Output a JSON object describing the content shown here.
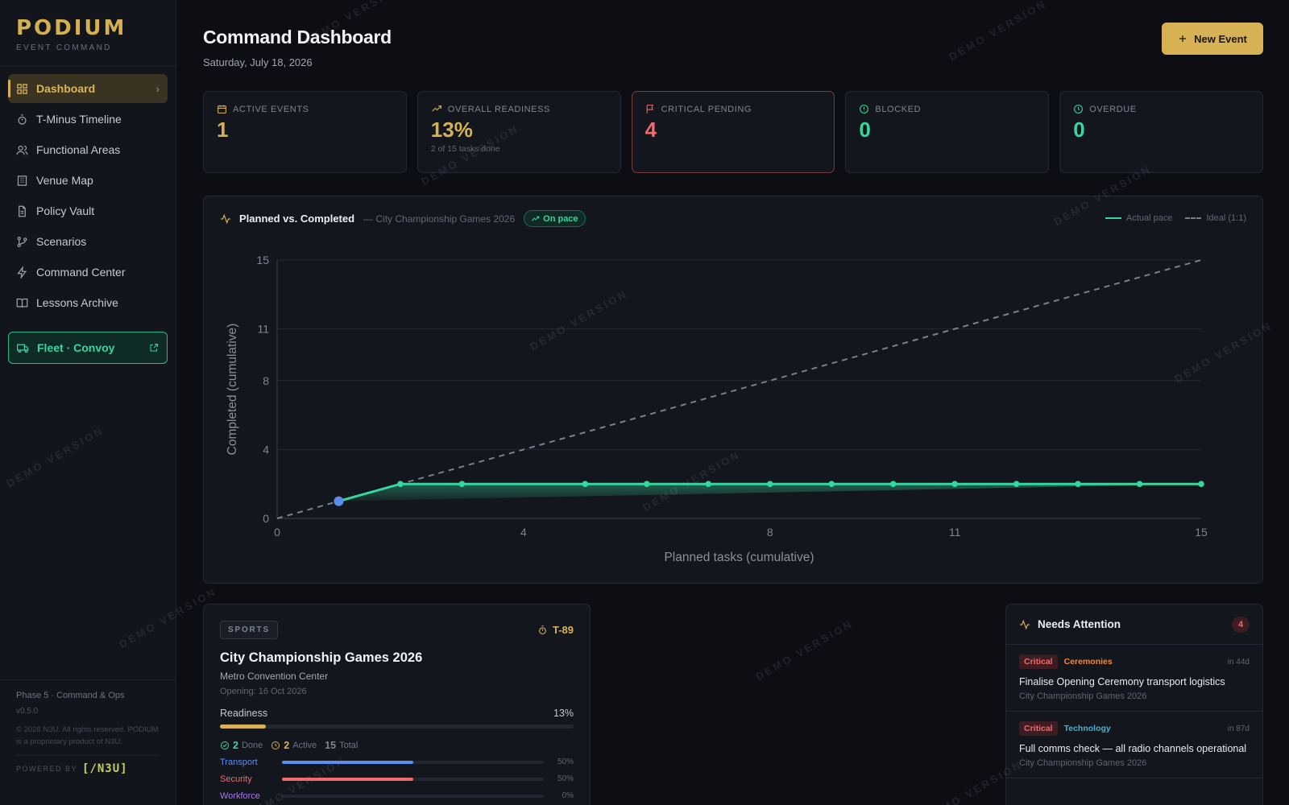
{
  "brand": {
    "logo": "PODIUM",
    "subtitle": "EVENT COMMAND"
  },
  "sidebar": {
    "items": [
      {
        "label": "Dashboard",
        "icon": "dashboard-icon",
        "active": true
      },
      {
        "label": "T-Minus Timeline",
        "icon": "timer-icon"
      },
      {
        "label": "Functional Areas",
        "icon": "users-icon"
      },
      {
        "label": "Venue Map",
        "icon": "building-icon"
      },
      {
        "label": "Policy Vault",
        "icon": "document-icon"
      },
      {
        "label": "Scenarios",
        "icon": "branch-icon"
      },
      {
        "label": "Command Center",
        "icon": "zap-icon"
      },
      {
        "label": "Lessons Archive",
        "icon": "book-icon"
      }
    ],
    "fleet": {
      "label": "Fleet · Convoy",
      "icon": "truck-icon"
    },
    "footer": {
      "phase": "Phase 5 · Command & Ops",
      "version": "v0.5.0",
      "copyright": "© 2026 N3U. All rights reserved. PODIUM is a proprietary product of N3U.",
      "powered_by": "POWERED BY",
      "powered_logo": "[/N3U]"
    }
  },
  "header": {
    "title": "Command Dashboard",
    "date": "Saturday, July 18, 2026",
    "new_event": "New Event"
  },
  "kpis": [
    {
      "label": "ACTIVE EVENTS",
      "value": "1",
      "sub": "",
      "color": "#d6b254",
      "icon": "calendar-icon"
    },
    {
      "label": "OVERALL READINESS",
      "value": "13%",
      "sub": "2 of 15 tasks done",
      "color": "#d6b254",
      "icon": "trending-up-icon"
    },
    {
      "label": "CRITICAL PENDING",
      "value": "4",
      "sub": "",
      "color": "#f06a6e",
      "icon": "flag-icon"
    },
    {
      "label": "BLOCKED",
      "value": "0",
      "sub": "",
      "color": "#36d69f",
      "icon": "alert-circle-icon"
    },
    {
      "label": "OVERDUE",
      "value": "0",
      "sub": "",
      "color": "#36d69f",
      "icon": "clock-icon"
    }
  ],
  "chart_card": {
    "title": "Planned vs. Completed",
    "subtitle": "— City Championship Games 2026",
    "status": "On pace",
    "legend_actual": "Actual pace",
    "legend_ideal": "Ideal (1:1)"
  },
  "chart_data": {
    "type": "line",
    "xlabel": "Planned tasks (cumulative)",
    "ylabel": "Completed (cumulative)",
    "xlim": [
      0,
      15
    ],
    "ylim": [
      0,
      15
    ],
    "xticks": [
      0,
      4,
      8,
      11,
      15
    ],
    "yticks": [
      0,
      4,
      8,
      11,
      15
    ],
    "grid": true,
    "legend": "top-right",
    "series": [
      {
        "name": "Actual pace",
        "color": "#36d69f",
        "x": [
          1,
          2,
          3,
          5,
          6,
          7,
          8,
          9,
          10,
          11,
          12,
          13,
          14,
          15
        ],
        "y": [
          1,
          2,
          2,
          2,
          2,
          2,
          2,
          2,
          2,
          2,
          2,
          2,
          2,
          2
        ]
      },
      {
        "name": "Ideal (1:1)",
        "color": "#7b808c",
        "dashed": true,
        "x": [
          0,
          15
        ],
        "y": [
          0,
          15
        ]
      }
    ],
    "highlight_point": {
      "x": 1,
      "y": 1,
      "color": "#5b8def"
    }
  },
  "event": {
    "category": "SPORTS",
    "tminus": "T-89",
    "name": "City Championship Games 2026",
    "venue": "Metro Convention Center",
    "opening": "Opening: 16 Oct 2026",
    "readiness_label": "Readiness",
    "readiness_value": "13%",
    "readiness_fraction": 0.13,
    "done_count": "2",
    "done_label": "Done",
    "active_count": "2",
    "active_label": "Active",
    "total_count": "15",
    "total_label": "Total",
    "areas": [
      {
        "name": "Transport",
        "pct": "50%",
        "fraction": 0.5,
        "color": "#5b8def"
      },
      {
        "name": "Security",
        "pct": "50%",
        "fraction": 0.5,
        "color": "#f06a6e"
      },
      {
        "name": "Workforce",
        "pct": "0%",
        "fraction": 0,
        "color": "#a77be8"
      }
    ]
  },
  "attention": {
    "title": "Needs Attention",
    "count": "4",
    "items": [
      {
        "priority": "Critical",
        "area": "Ceremonies",
        "area_color": "#f08a3c",
        "due": "in 44d",
        "title": "Finalise Opening Ceremony transport logistics",
        "event": "City Championship Games 2026"
      },
      {
        "priority": "Critical",
        "area": "Technology",
        "area_color": "#3fb6d9",
        "due": "in 87d",
        "title": "Full comms check — all radio channels operational",
        "event": "City Championship Games 2026"
      }
    ]
  },
  "watermark": "DEMO VERSION"
}
